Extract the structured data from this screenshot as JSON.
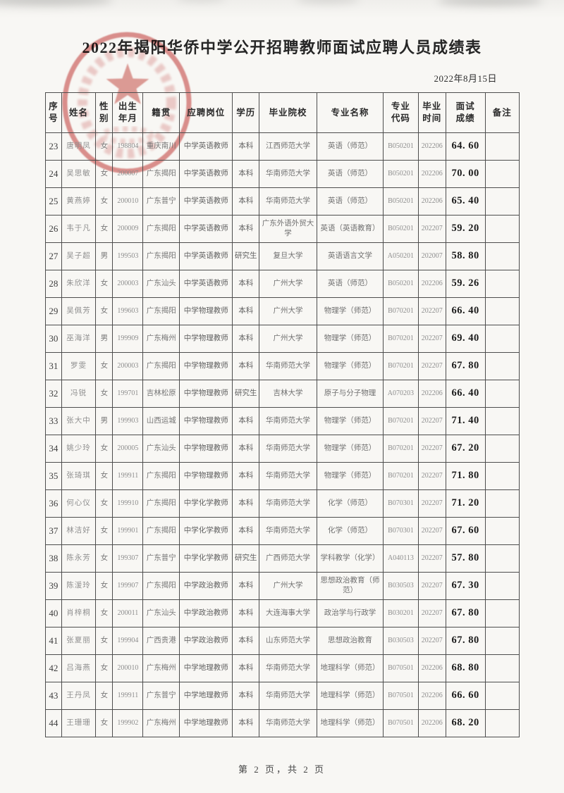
{
  "page": {
    "title": "2022年揭阳华侨中学公开招聘教师面试应聘人员成绩表",
    "date": "2022年8月15日",
    "footer": "第 2 页，共 2 页",
    "stamp": {
      "kind": "red-circular-official-seal-with-star",
      "color": "#c53b38"
    }
  },
  "table": {
    "headers": [
      "序\n号",
      "姓名",
      "性\n别",
      "出生\n年月",
      "籍贯",
      "应聘岗位",
      "学历",
      "毕业院校",
      "专业名称",
      "专业\n代码",
      "毕业\n时间",
      "面试\n成绩",
      "备注"
    ],
    "rows": [
      [
        "23",
        "唐明凤",
        "女",
        "198804",
        "重庆南川",
        "中学英语教师",
        "本科",
        "江西师范大学",
        "英语（师范）",
        "B050201",
        "202206",
        "64. 60",
        ""
      ],
      [
        "24",
        "吴思敏",
        "女",
        "200007",
        "广东揭阳",
        "中学英语教师",
        "本科",
        "华南师范大学",
        "英语（师范）",
        "B050201",
        "202206",
        "70. 00",
        ""
      ],
      [
        "25",
        "黄燕婷",
        "女",
        "200010",
        "广东普宁",
        "中学英语教师",
        "本科",
        "华南师范大学",
        "英语（师范）",
        "B050201",
        "202206",
        "65. 40",
        ""
      ],
      [
        "26",
        "韦于凡",
        "女",
        "200009",
        "广东揭阳",
        "中学英语教师",
        "本科",
        "广东外语外贸大学",
        "英语（英语教育）",
        "B050201",
        "202207",
        "59. 20",
        ""
      ],
      [
        "27",
        "吴子超",
        "男",
        "199503",
        "广东揭阳",
        "中学英语教师",
        "研究生",
        "复旦大学",
        "英语语言文学",
        "A050201",
        "202007",
        "58. 80",
        ""
      ],
      [
        "28",
        "朱欣洋",
        "女",
        "200003",
        "广东汕头",
        "中学英语教师",
        "本科",
        "广州大学",
        "英语（师范）",
        "B050201",
        "202206",
        "59. 26",
        ""
      ],
      [
        "29",
        "吴佩芳",
        "女",
        "199603",
        "广东揭阳",
        "中学物理教师",
        "本科",
        "广州大学",
        "物理学（师范）",
        "B070201",
        "202207",
        "66. 40",
        ""
      ],
      [
        "30",
        "巫海洋",
        "男",
        "199909",
        "广东梅州",
        "中学物理教师",
        "本科",
        "广州大学",
        "物理学（师范）",
        "B070201",
        "202207",
        "69. 40",
        ""
      ],
      [
        "31",
        "罗雯",
        "女",
        "200003",
        "广东揭阳",
        "中学物理教师",
        "本科",
        "华南师范大学",
        "物理学（师范）",
        "B070201",
        "202207",
        "67. 80",
        ""
      ],
      [
        "32",
        "冯锐",
        "女",
        "199701",
        "吉林松原",
        "中学物理教师",
        "研究生",
        "吉林大学",
        "原子与分子物理",
        "A070203",
        "202206",
        "66. 40",
        ""
      ],
      [
        "33",
        "张大中",
        "男",
        "199903",
        "山西运城",
        "中学物理教师",
        "本科",
        "华南师范大学",
        "物理学（师范）",
        "B070201",
        "202207",
        "71. 40",
        ""
      ],
      [
        "34",
        "姚少玲",
        "女",
        "200005",
        "广东汕头",
        "中学物理教师",
        "本科",
        "华南师范大学",
        "物理学（师范）",
        "B070201",
        "202207",
        "67. 20",
        ""
      ],
      [
        "35",
        "张琦琪",
        "女",
        "199911",
        "广东揭阳",
        "中学物理教师",
        "本科",
        "华南师范大学",
        "物理学（师范）",
        "B070201",
        "202207",
        "71. 80",
        ""
      ],
      [
        "36",
        "何心仪",
        "女",
        "199910",
        "广东揭阳",
        "中学化学教师",
        "本科",
        "华南师范大学",
        "化学（师范）",
        "B070301",
        "202207",
        "71. 20",
        ""
      ],
      [
        "37",
        "林洁好",
        "女",
        "199901",
        "广东揭阳",
        "中学化学教师",
        "本科",
        "华南师范大学",
        "化学（师范）",
        "B070301",
        "202207",
        "67. 60",
        ""
      ],
      [
        "38",
        "陈永芳",
        "女",
        "199307",
        "广东普宁",
        "中学化学教师",
        "研究生",
        "广西师范大学",
        "学科教学（化学）",
        "A040113",
        "202207",
        "57. 80",
        ""
      ],
      [
        "39",
        "陈湲玲",
        "女",
        "199907",
        "广东揭阳",
        "中学政治教师",
        "本科",
        "广州大学",
        "思想政治教育（师范）",
        "B030503",
        "202207",
        "67. 30",
        ""
      ],
      [
        "40",
        "肖梓桐",
        "女",
        "200011",
        "广东汕头",
        "中学政治教师",
        "本科",
        "大连海事大学",
        "政治学与行政学",
        "B030201",
        "202207",
        "67. 80",
        ""
      ],
      [
        "41",
        "张夏丽",
        "女",
        "199904",
        "广西贵港",
        "中学政治教师",
        "本科",
        "山东师范大学",
        "思想政治教育",
        "B030503",
        "202207",
        "67. 80",
        ""
      ],
      [
        "42",
        "吕海燕",
        "女",
        "200010",
        "广东梅州",
        "中学地理教师",
        "本科",
        "华南师范大学",
        "地理科学（师范）",
        "B070501",
        "202206",
        "68. 80",
        ""
      ],
      [
        "43",
        "王丹凤",
        "女",
        "199911",
        "广东普宁",
        "中学地理教师",
        "本科",
        "华南师范大学",
        "地理科学（师范）",
        "B070501",
        "202206",
        "66. 60",
        ""
      ],
      [
        "44",
        "王珊珊",
        "女",
        "199902",
        "广东梅州",
        "中学地理教师",
        "本科",
        "华南师范大学",
        "地理科学（师范）",
        "B070501",
        "202206",
        "68. 20",
        ""
      ]
    ]
  }
}
